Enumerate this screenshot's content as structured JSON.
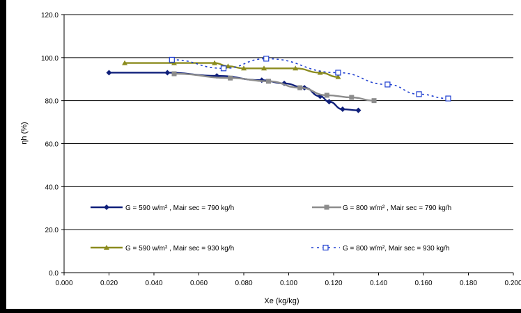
{
  "chart_data": {
    "type": "line",
    "title": "",
    "xlabel": "Xe (kg/kg)",
    "ylabel": "ηh (%)",
    "xlim": [
      0,
      0.2
    ],
    "ylim": [
      0,
      120
    ],
    "x_ticks": [
      "0.000",
      "0.020",
      "0.040",
      "0.060",
      "0.080",
      "0.100",
      "0.120",
      "0.140",
      "0.160",
      "0.180",
      "0.200"
    ],
    "y_ticks": [
      "0.0",
      "20.0",
      "40.0",
      "60.0",
      "80.0",
      "100.0",
      "120.0"
    ],
    "grid": "horizontal",
    "legend_placement": "inside-bottom",
    "series": [
      {
        "name": "G = 590 w/m² , Mair sec = 790 kg/h",
        "color": "#0f1f7a",
        "marker": "diamond",
        "line": "solid",
        "points": [
          [
            0.02,
            93.0
          ],
          [
            0.046,
            93.0
          ],
          [
            0.068,
            91.5
          ],
          [
            0.088,
            89.5
          ],
          [
            0.098,
            88.0
          ],
          [
            0.107,
            86.0
          ],
          [
            0.114,
            82.0
          ],
          [
            0.118,
            79.5
          ],
          [
            0.124,
            76.0
          ],
          [
            0.131,
            75.5
          ]
        ]
      },
      {
        "name": "G = 800 w/m² , Mair sec = 790 kg/h",
        "color": "#8c8c8c",
        "marker": "square",
        "line": "solid",
        "points": [
          [
            0.049,
            92.5
          ],
          [
            0.074,
            90.5
          ],
          [
            0.091,
            89.0
          ],
          [
            0.105,
            86.0
          ],
          [
            0.117,
            82.5
          ],
          [
            0.128,
            81.5
          ],
          [
            0.138,
            80.0
          ]
        ]
      },
      {
        "name": "G = 590 w/m² , Mair sec = 930 kg/h",
        "color": "#8b8b1e",
        "marker": "triangle",
        "line": "solid",
        "points": [
          [
            0.027,
            97.5
          ],
          [
            0.049,
            97.5
          ],
          [
            0.067,
            97.5
          ],
          [
            0.073,
            96.0
          ],
          [
            0.08,
            95.0
          ],
          [
            0.089,
            95.0
          ],
          [
            0.103,
            95.0
          ],
          [
            0.114,
            93.0
          ],
          [
            0.122,
            91.0
          ]
        ]
      },
      {
        "name": "G = 800 w/m², Mair sec = 930 kg/h",
        "color": "#1f3fd0",
        "marker": "square-open",
        "line": "dashed",
        "points": [
          [
            0.048,
            99.0
          ],
          [
            0.071,
            95.0
          ],
          [
            0.09,
            99.5
          ],
          [
            0.122,
            93.0
          ],
          [
            0.144,
            87.5
          ],
          [
            0.158,
            83.0
          ],
          [
            0.171,
            81.0
          ]
        ]
      }
    ]
  }
}
